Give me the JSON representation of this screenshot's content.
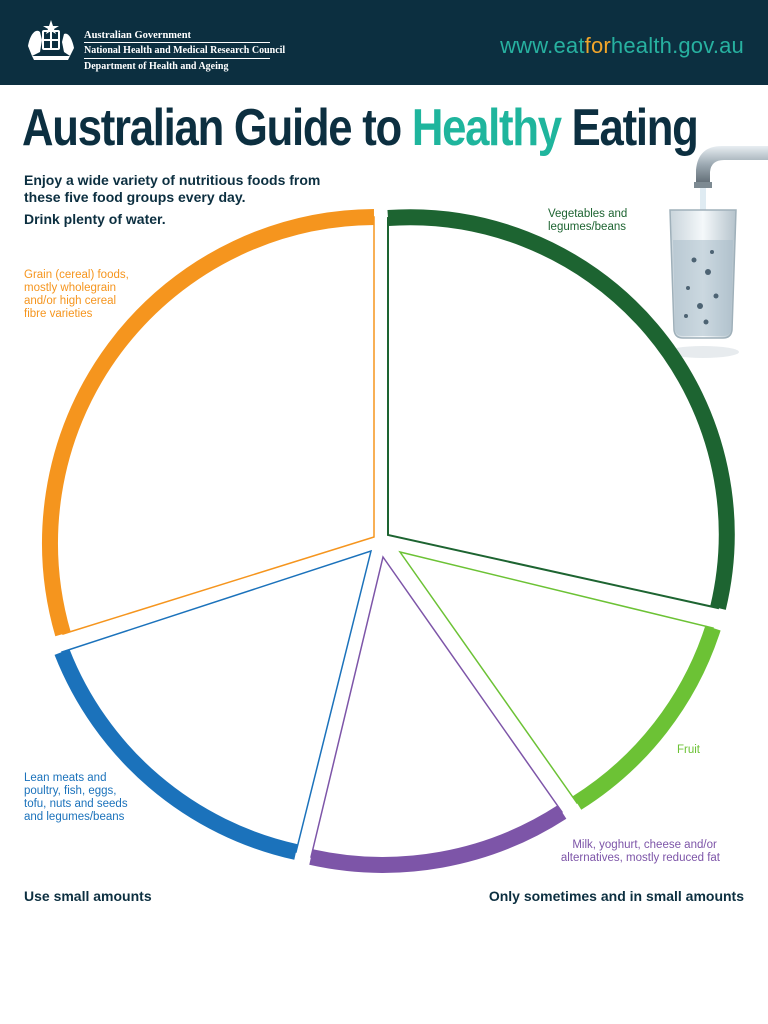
{
  "header": {
    "gov_line_1": "Australian Government",
    "gov_line_2": "National Health and Medical Research Council",
    "gov_line_3": "Department of Health and Ageing",
    "url_prefix": "www.eat",
    "url_highlight": "for",
    "url_suffix": "health.gov.au"
  },
  "title": {
    "part_1": "Australian Guide to ",
    "highlight": "Healthy",
    "part_2": " Eating"
  },
  "intro": {
    "line_1": "Enjoy a wide variety of nutritious foods from these five food groups every day.",
    "line_2": "Drink plenty of water."
  },
  "food_groups": [
    {
      "label_lines": [
        "Vegetables and",
        "legumes/beans"
      ],
      "color": "#1d6431"
    },
    {
      "label_lines": [
        "Fruit"
      ],
      "color": "#6cc235"
    },
    {
      "label_lines": [
        "Milk, yoghurt, cheese and/or",
        "alternatives, mostly reduced fat"
      ],
      "color": "#7d55a8"
    },
    {
      "label_lines": [
        "Lean meats and",
        "poultry, fish, eggs,",
        "tofu, nuts and seeds",
        "and legumes/beans"
      ],
      "color": "#1b72bb"
    },
    {
      "label_lines": [
        "Grain (cereal) foods,",
        "mostly wholegrain",
        "and/or high cereal",
        "fibre varieties"
      ],
      "color": "#f5951e"
    }
  ],
  "footer": {
    "left": "Use small amounts",
    "right": "Only sometimes and in small amounts"
  },
  "colors": {
    "header_bg": "#0c2f40",
    "title": "#0c2f40",
    "accent": "#1fb59d"
  }
}
